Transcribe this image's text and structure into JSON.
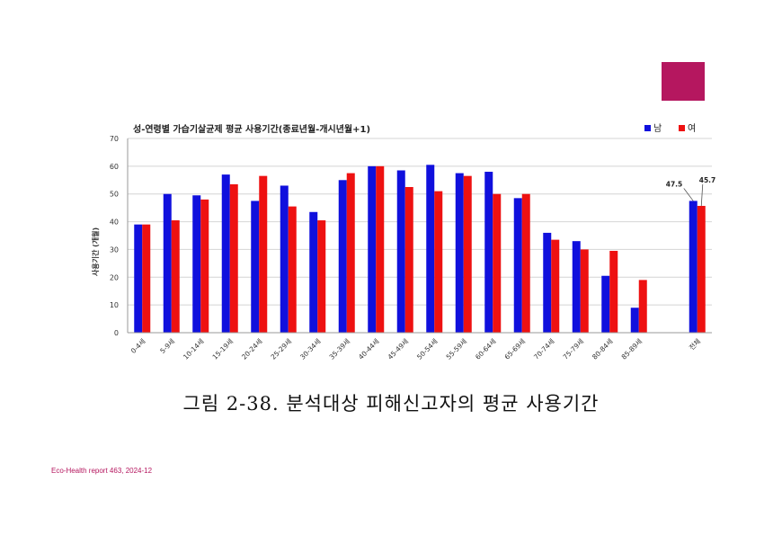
{
  "accent_color": "#b5175f",
  "caption": "그림 2-38. 분석대상 피해신고자의 평균 사용기간",
  "footer": "Eco-Health report 463, 2024-12",
  "chart_data": {
    "type": "bar",
    "title": "성-연령별 가습기살균제 평균 사용기간(종료년월-개시년월+1)",
    "xlabel": "",
    "ylabel": "사용기간 (개월)",
    "ylim": [
      0,
      70
    ],
    "yticks": [
      0,
      10,
      20,
      30,
      40,
      50,
      60,
      70
    ],
    "grid": true,
    "legend_position": "top-right",
    "categories": [
      "0-4세",
      "5-9세",
      "10-14세",
      "15-19세",
      "20-24세",
      "25-29세",
      "30-34세",
      "35-39세",
      "40-44세",
      "45-49세",
      "50-54세",
      "55-59세",
      "60-64세",
      "65-69세",
      "70-74세",
      "75-79세",
      "80-84세",
      "85-89세",
      "전체"
    ],
    "series": [
      {
        "name": "남",
        "color": "#1010dd",
        "values": [
          39,
          50,
          49.5,
          57,
          47.5,
          53,
          43.5,
          55,
          60,
          58.5,
          60.5,
          57.5,
          58,
          48.5,
          36,
          33,
          20.5,
          9,
          47.5
        ]
      },
      {
        "name": "여",
        "color": "#ee1111",
        "values": [
          39,
          40.5,
          48,
          53.5,
          56.5,
          45.5,
          40.5,
          57.5,
          60,
          52.5,
          51,
          56.5,
          50,
          50,
          33.5,
          30,
          29.5,
          19,
          45.7
        ]
      }
    ],
    "data_labels": [
      {
        "category": "전체",
        "series": "남",
        "text": "47.5"
      },
      {
        "category": "전체",
        "series": "여",
        "text": "45.7"
      }
    ]
  }
}
